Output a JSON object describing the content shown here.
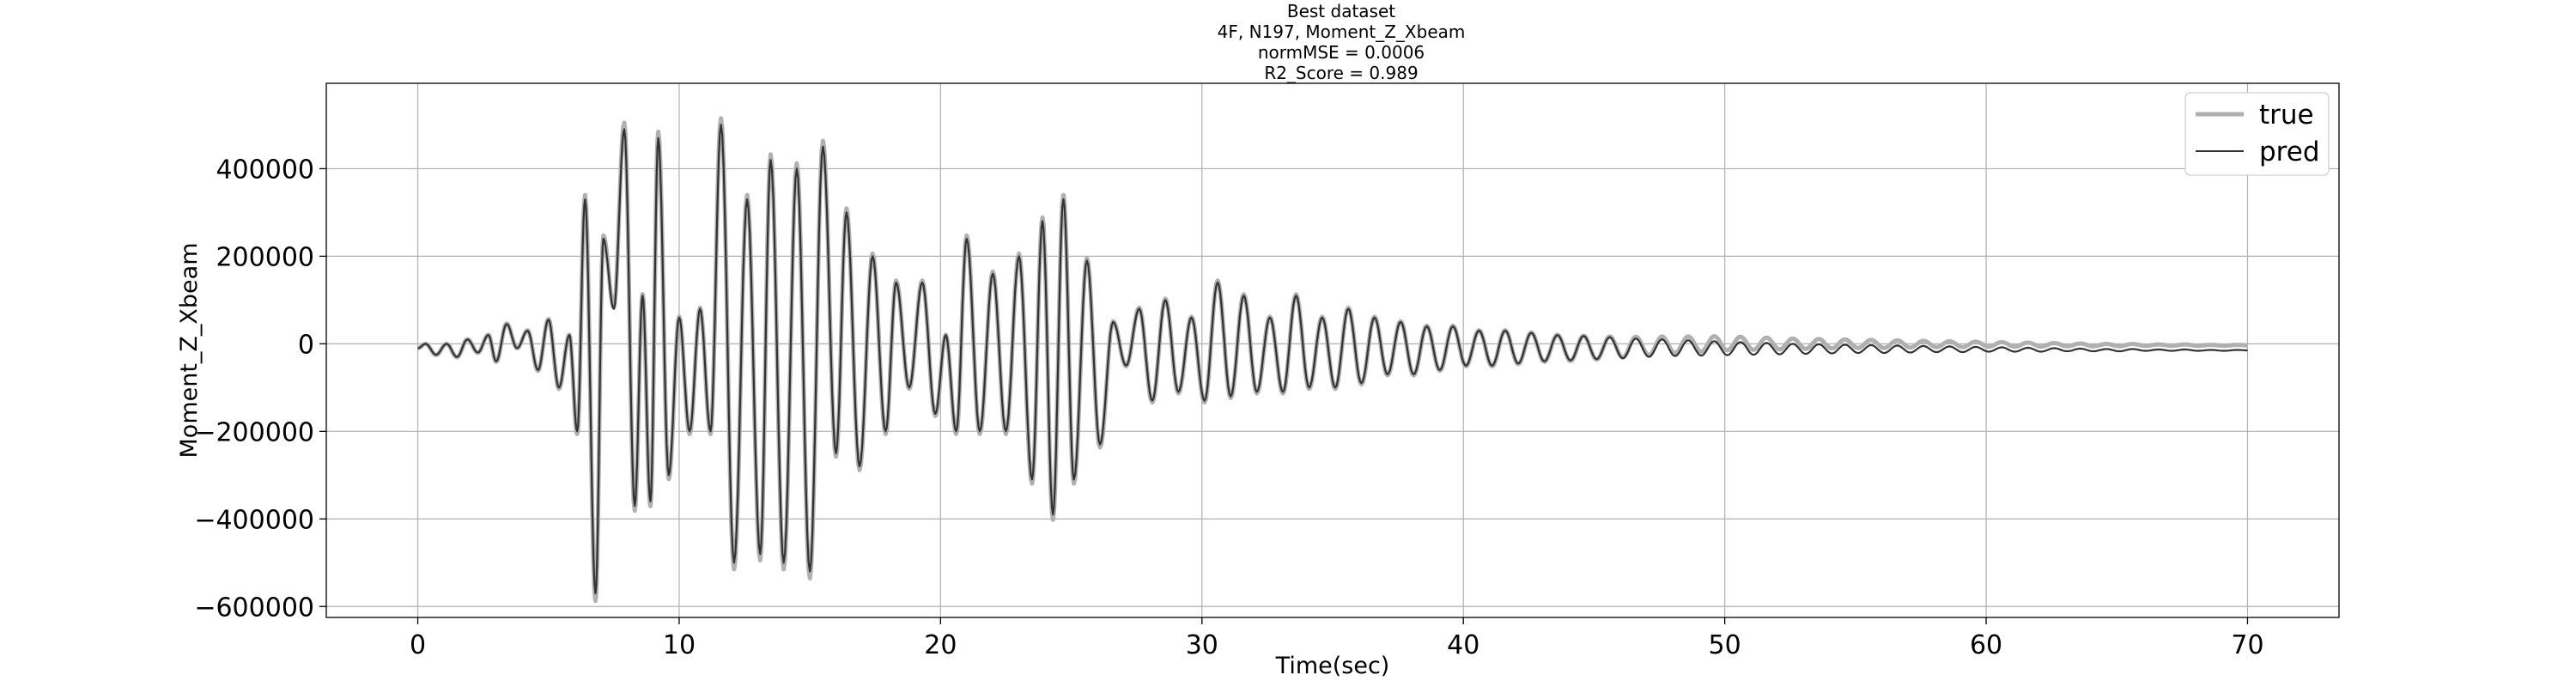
{
  "chart_data": {
    "type": "line",
    "title_lines": [
      "Best dataset",
      "4F, N197, Moment_Z_Xbeam",
      "normMSE = 0.0006",
      "R2_Score = 0.989"
    ],
    "xlabel": "Time(sec)",
    "ylabel": "Moment_Z_Xbeam",
    "xlim": [
      -3.5,
      73.5
    ],
    "ylim": [
      -625000,
      595000
    ],
    "xticks": [
      0,
      10,
      20,
      30,
      40,
      50,
      60,
      70
    ],
    "yticks": [
      -600000,
      -400000,
      -200000,
      0,
      200000,
      400000
    ],
    "xtick_labels": [
      "0",
      "10",
      "20",
      "30",
      "40",
      "50",
      "60",
      "70"
    ],
    "ytick_labels": [
      "−600000",
      "−400000",
      "−200000",
      "0",
      "200000",
      "400000"
    ],
    "grid": true,
    "legend_position": "top-right",
    "series": [
      {
        "name": "true",
        "color": "#b0b0b0",
        "style": "thick"
      },
      {
        "name": "pred",
        "color": "#333333",
        "style": "thin"
      }
    ],
    "extrema_pred": [
      {
        "x": 0.0,
        "y": -10000
      },
      {
        "x": 0.3,
        "y": 0
      },
      {
        "x": 0.7,
        "y": -25000
      },
      {
        "x": 1.1,
        "y": 0
      },
      {
        "x": 1.5,
        "y": -30000
      },
      {
        "x": 1.9,
        "y": 10000
      },
      {
        "x": 2.3,
        "y": -20000
      },
      {
        "x": 2.7,
        "y": 20000
      },
      {
        "x": 3.0,
        "y": -40000
      },
      {
        "x": 3.4,
        "y": 45000
      },
      {
        "x": 3.8,
        "y": -10000
      },
      {
        "x": 4.2,
        "y": 30000
      },
      {
        "x": 4.6,
        "y": -60000
      },
      {
        "x": 5.0,
        "y": 55000
      },
      {
        "x": 5.4,
        "y": -100000
      },
      {
        "x": 5.8,
        "y": 20000
      },
      {
        "x": 6.1,
        "y": -200000
      },
      {
        "x": 6.4,
        "y": 330000
      },
      {
        "x": 6.8,
        "y": -570000
      },
      {
        "x": 7.1,
        "y": 240000
      },
      {
        "x": 7.5,
        "y": 80000
      },
      {
        "x": 7.9,
        "y": 490000
      },
      {
        "x": 8.3,
        "y": -370000
      },
      {
        "x": 8.6,
        "y": 110000
      },
      {
        "x": 8.9,
        "y": -360000
      },
      {
        "x": 9.2,
        "y": 470000
      },
      {
        "x": 9.6,
        "y": -300000
      },
      {
        "x": 10.0,
        "y": 60000
      },
      {
        "x": 10.4,
        "y": -200000
      },
      {
        "x": 10.8,
        "y": 80000
      },
      {
        "x": 11.2,
        "y": -200000
      },
      {
        "x": 11.6,
        "y": 500000
      },
      {
        "x": 12.1,
        "y": -500000
      },
      {
        "x": 12.6,
        "y": 330000
      },
      {
        "x": 13.1,
        "y": -480000
      },
      {
        "x": 13.5,
        "y": 420000
      },
      {
        "x": 14.0,
        "y": -500000
      },
      {
        "x": 14.5,
        "y": 400000
      },
      {
        "x": 15.0,
        "y": -520000
      },
      {
        "x": 15.5,
        "y": 450000
      },
      {
        "x": 16.0,
        "y": -250000
      },
      {
        "x": 16.4,
        "y": 300000
      },
      {
        "x": 16.9,
        "y": -280000
      },
      {
        "x": 17.4,
        "y": 200000
      },
      {
        "x": 17.9,
        "y": -200000
      },
      {
        "x": 18.3,
        "y": 140000
      },
      {
        "x": 18.8,
        "y": -100000
      },
      {
        "x": 19.3,
        "y": 140000
      },
      {
        "x": 19.8,
        "y": -160000
      },
      {
        "x": 20.2,
        "y": 20000
      },
      {
        "x": 20.6,
        "y": -200000
      },
      {
        "x": 21.0,
        "y": 240000
      },
      {
        "x": 21.5,
        "y": -200000
      },
      {
        "x": 22.0,
        "y": 160000
      },
      {
        "x": 22.5,
        "y": -200000
      },
      {
        "x": 23.0,
        "y": 200000
      },
      {
        "x": 23.5,
        "y": -310000
      },
      {
        "x": 23.9,
        "y": 280000
      },
      {
        "x": 24.3,
        "y": -390000
      },
      {
        "x": 24.7,
        "y": 330000
      },
      {
        "x": 25.1,
        "y": -310000
      },
      {
        "x": 25.6,
        "y": 190000
      },
      {
        "x": 26.1,
        "y": -230000
      },
      {
        "x": 26.6,
        "y": 50000
      },
      {
        "x": 27.1,
        "y": -50000
      },
      {
        "x": 27.6,
        "y": 80000
      },
      {
        "x": 28.1,
        "y": -130000
      },
      {
        "x": 28.6,
        "y": 100000
      },
      {
        "x": 29.1,
        "y": -110000
      },
      {
        "x": 29.6,
        "y": 60000
      },
      {
        "x": 30.1,
        "y": -130000
      },
      {
        "x": 30.6,
        "y": 140000
      },
      {
        "x": 31.1,
        "y": -120000
      },
      {
        "x": 31.6,
        "y": 110000
      },
      {
        "x": 32.1,
        "y": -110000
      },
      {
        "x": 32.6,
        "y": 60000
      },
      {
        "x": 33.1,
        "y": -110000
      },
      {
        "x": 33.6,
        "y": 110000
      },
      {
        "x": 34.1,
        "y": -100000
      },
      {
        "x": 34.6,
        "y": 60000
      },
      {
        "x": 35.1,
        "y": -100000
      },
      {
        "x": 35.6,
        "y": 80000
      },
      {
        "x": 36.1,
        "y": -90000
      },
      {
        "x": 36.6,
        "y": 60000
      },
      {
        "x": 37.1,
        "y": -70000
      },
      {
        "x": 37.6,
        "y": 50000
      },
      {
        "x": 38.1,
        "y": -70000
      },
      {
        "x": 38.6,
        "y": 40000
      },
      {
        "x": 39.1,
        "y": -60000
      },
      {
        "x": 39.6,
        "y": 40000
      },
      {
        "x": 40.1,
        "y": -50000
      },
      {
        "x": 40.6,
        "y": 30000
      },
      {
        "x": 41.1,
        "y": -50000
      },
      {
        "x": 41.6,
        "y": 30000
      },
      {
        "x": 42.1,
        "y": -45000
      },
      {
        "x": 42.6,
        "y": 25000
      },
      {
        "x": 43.1,
        "y": -40000
      },
      {
        "x": 43.6,
        "y": 20000
      },
      {
        "x": 44.1,
        "y": -38000
      },
      {
        "x": 44.6,
        "y": 18000
      },
      {
        "x": 45.1,
        "y": -35000
      },
      {
        "x": 45.6,
        "y": 15000
      },
      {
        "x": 46.1,
        "y": -33000
      },
      {
        "x": 46.6,
        "y": 12000
      },
      {
        "x": 47.1,
        "y": -30000
      },
      {
        "x": 47.6,
        "y": 10000
      },
      {
        "x": 48.1,
        "y": -28000
      },
      {
        "x": 48.6,
        "y": 8000
      },
      {
        "x": 49.1,
        "y": -27000
      },
      {
        "x": 49.6,
        "y": 6000
      },
      {
        "x": 50.1,
        "y": -26000
      },
      {
        "x": 50.6,
        "y": 4000
      },
      {
        "x": 51.1,
        "y": -25000
      },
      {
        "x": 51.6,
        "y": 2000
      },
      {
        "x": 52.1,
        "y": -24000
      },
      {
        "x": 52.6,
        "y": 0
      },
      {
        "x": 53.1,
        "y": -23000
      },
      {
        "x": 53.6,
        "y": -1000
      },
      {
        "x": 54.1,
        "y": -22000
      },
      {
        "x": 54.6,
        "y": -2000
      },
      {
        "x": 55.1,
        "y": -21000
      },
      {
        "x": 55.6,
        "y": -3000
      },
      {
        "x": 56.1,
        "y": -21000
      },
      {
        "x": 56.6,
        "y": -4000
      },
      {
        "x": 57.1,
        "y": -20000
      },
      {
        "x": 57.6,
        "y": -5000
      },
      {
        "x": 58.1,
        "y": -19000
      },
      {
        "x": 58.6,
        "y": -6000
      },
      {
        "x": 59.1,
        "y": -19000
      },
      {
        "x": 59.6,
        "y": -7000
      },
      {
        "x": 60.1,
        "y": -18000
      },
      {
        "x": 60.6,
        "y": -8000
      },
      {
        "x": 61.1,
        "y": -18000
      },
      {
        "x": 61.6,
        "y": -9000
      },
      {
        "x": 62.1,
        "y": -18000
      },
      {
        "x": 62.6,
        "y": -10000
      },
      {
        "x": 63.1,
        "y": -17000
      },
      {
        "x": 63.6,
        "y": -11000
      },
      {
        "x": 64.1,
        "y": -17000
      },
      {
        "x": 64.6,
        "y": -12000
      },
      {
        "x": 65.1,
        "y": -17000
      },
      {
        "x": 65.6,
        "y": -12000
      },
      {
        "x": 66.1,
        "y": -16000
      },
      {
        "x": 66.6,
        "y": -13000
      },
      {
        "x": 67.1,
        "y": -16000
      },
      {
        "x": 67.6,
        "y": -13000
      },
      {
        "x": 68.1,
        "y": -16000
      },
      {
        "x": 68.6,
        "y": -14000
      },
      {
        "x": 69.1,
        "y": -16000
      },
      {
        "x": 69.6,
        "y": -14000
      },
      {
        "x": 70.0,
        "y": -15000
      }
    ],
    "true_offset_tail": 12000,
    "true_amplitude_scale": 1.03
  }
}
